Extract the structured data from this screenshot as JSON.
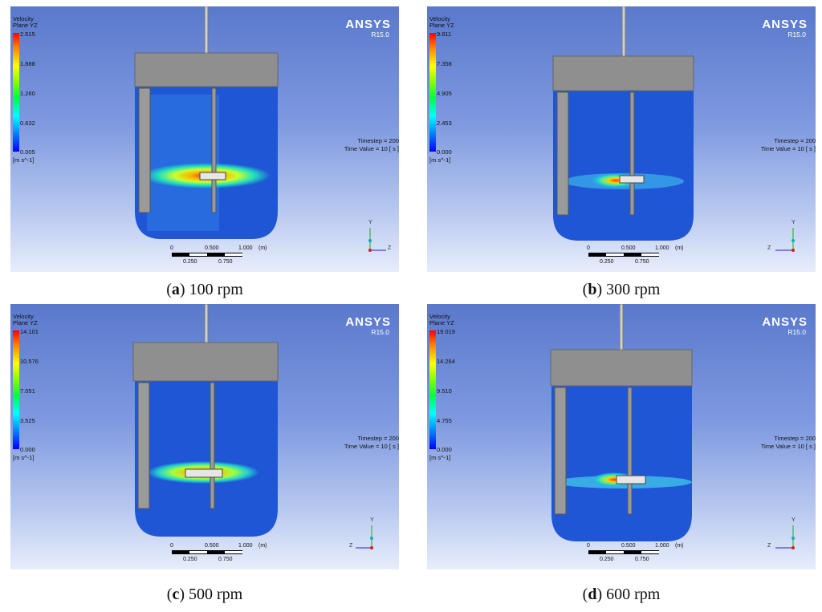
{
  "panels": [
    {
      "legend_title": "Velocity\nPlane YZ",
      "ticks": [
        "2.515",
        "1.888",
        "1.260",
        "0.632",
        "0.005"
      ],
      "unit": "[m s^-1]",
      "brand": "ANSYS",
      "version": "R15.0",
      "timestep": "Timestep = 200\nTime Value = 10 [ s ]",
      "scale_top": [
        "0",
        "0.500",
        "1.000",
        "(m)"
      ],
      "scale_bottom": [
        "0.250",
        "0.750"
      ],
      "axis_up": "Y",
      "axis_side": "Z",
      "caption_letter": "a",
      "caption_text": " 100 rpm"
    },
    {
      "legend_title": "Velocity\nPlane YZ",
      "ticks": [
        "9.811",
        "7.358",
        "4.905",
        "2.453",
        "0.000"
      ],
      "unit": "[m s^-1]",
      "brand": "ANSYS",
      "version": "R15.0",
      "timestep": "Timestep = 200\nTime Value = 10 [ s ]",
      "scale_top": [
        "0",
        "0.500",
        "1.000",
        "(m)"
      ],
      "scale_bottom": [
        "0.250",
        "0.750"
      ],
      "axis_up": "Y",
      "axis_side": "Z",
      "caption_letter": "b",
      "caption_text": " 300 rpm"
    },
    {
      "legend_title": "Velocity\nPlane YZ",
      "ticks": [
        "14.101",
        "10.576",
        "7.051",
        "3.525",
        "0.000"
      ],
      "unit": "[m s^-1]",
      "brand": "ANSYS",
      "version": "R15.0",
      "timestep": "Timestep = 200\nTime Value = 10 [ s ]",
      "scale_top": [
        "0",
        "0.500",
        "1.000",
        "(m)"
      ],
      "scale_bottom": [
        "0.250",
        "0.750"
      ],
      "axis_up": "Y",
      "axis_side": "Z",
      "caption_letter": "c",
      "caption_text": " 500 rpm"
    },
    {
      "legend_title": "Velocity\nPlane YZ",
      "ticks": [
        "19.019",
        "14.264",
        "9.510",
        "4.755",
        "0.000"
      ],
      "unit": "[m s^-1]",
      "brand": "ANSYS",
      "version": "R15.0",
      "timestep": "Timestep = 200\nTime Value = 10 [ s ]",
      "scale_top": [
        "0",
        "0.500",
        "1.000",
        "(m)"
      ],
      "scale_bottom": [
        "0.250",
        "0.750"
      ],
      "axis_up": "Y",
      "axis_side": "Z",
      "caption_letter": "d",
      "caption_text": " 600 rpm"
    }
  ],
  "colors": {
    "background_top": "#5a79cc",
    "fluid": "#1f56d6",
    "lid": "#8f8f8f",
    "baffle": "#9a9a9a",
    "hot": "#ff2a00"
  }
}
